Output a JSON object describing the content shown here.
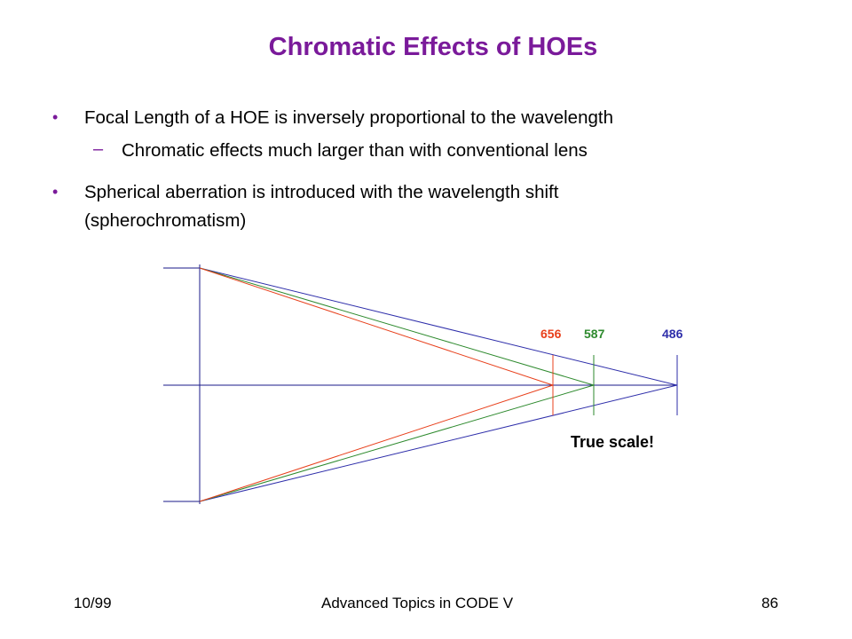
{
  "slide": {
    "title": "Chromatic Effects of HOEs",
    "bullets": [
      {
        "text": "Focal Length of a HOE is inversely proportional to the wavelength",
        "sub": "Chromatic effects much larger than with conventional lens"
      },
      {
        "text_line1": "Spherical aberration is introduced with the wavelength shift",
        "text_line2": "(spherochromatism)"
      }
    ]
  },
  "diagram": {
    "wavelengths": [
      {
        "label": "656",
        "color": "#e8401c"
      },
      {
        "label": "587",
        "color": "#2e8a2e"
      },
      {
        "label": "486",
        "color": "#2e2eaa"
      }
    ],
    "note": "True scale!"
  },
  "footer": {
    "date": "10/99",
    "course": "Advanced Topics in CODE V",
    "page": "86"
  }
}
